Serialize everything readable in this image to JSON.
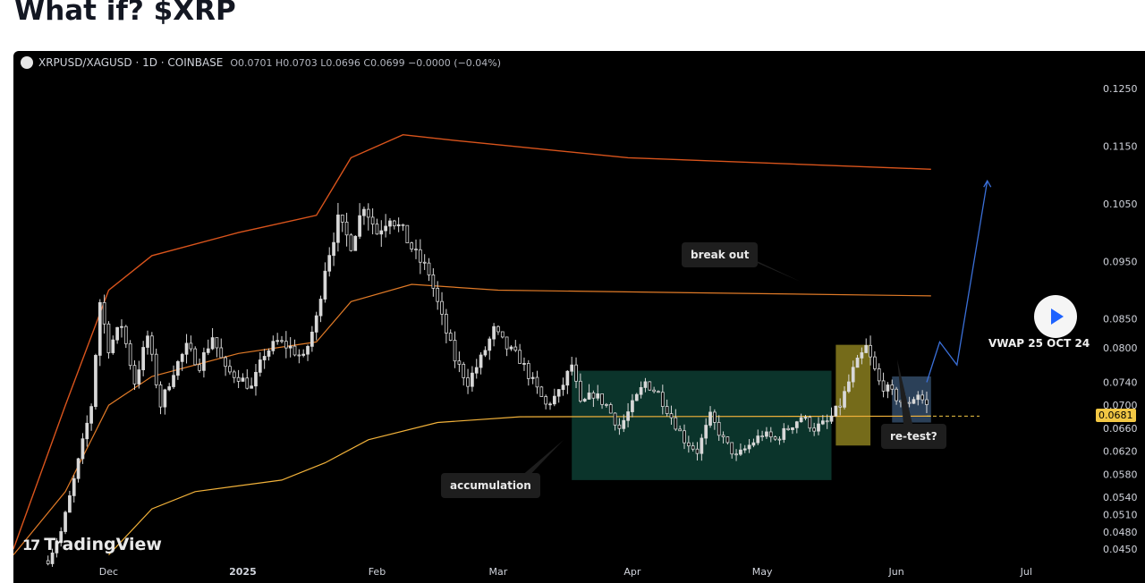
{
  "page": {
    "title": "What if? $XRP"
  },
  "header": {
    "symbol": "XRPUSD/XAGUSD · 1D · COINBASE",
    "ohlc": "O0.0701 H0.0703 L0.0696 C0.0699 −0.0000 (−0.04%)"
  },
  "annotations": {
    "breakout": "break out",
    "accumulation": "accumulation",
    "retest": "re-test?",
    "vwap": "VWAP 25 OCT 24",
    "last_price": "0.0681"
  },
  "logo": {
    "text": "TradingView",
    "icon": "tradingview-logo-icon"
  },
  "colors": {
    "background": "#000000",
    "candle": "#d8d8d8",
    "band_upper": "#d9541c",
    "band_mid": "#e07a27",
    "band_lower": "#f2b23a",
    "vwap": "#9b8a2f",
    "accumulation_box": "#0d3d33",
    "breakout_box": "#8a7e1e",
    "retest_box": "#36506e",
    "projection": "#3a6fd8",
    "badge": "#f2c744"
  },
  "chart_data": {
    "type": "candlestick",
    "symbol": "XRPUSD/XAGUSD",
    "interval": "1D",
    "exchange": "COINBASE",
    "y_ticks": [
      "0.1250",
      "0.1150",
      "0.1050",
      "0.0950",
      "0.0850",
      "0.0800",
      "0.0740",
      "0.0700",
      "0.0660",
      "0.0620",
      "0.0580",
      "0.0540",
      "0.0510",
      "0.0480",
      "0.0450"
    ],
    "x_ticks": [
      "Dec",
      "2025",
      "Feb",
      "Mar",
      "Apr",
      "May",
      "Jun",
      "Jul"
    ],
    "ylim": [
      0.043,
      0.13
    ],
    "x_range_days": [
      -22,
      226
    ],
    "vwap_value": 0.0681,
    "last_close": 0.0699,
    "price_path": [
      [
        -14,
        0.043
      ],
      [
        -11,
        0.048
      ],
      [
        -8,
        0.057
      ],
      [
        -4,
        0.07
      ],
      [
        -2,
        0.088
      ],
      [
        0,
        0.08
      ],
      [
        3,
        0.084
      ],
      [
        6,
        0.074
      ],
      [
        9,
        0.082
      ],
      [
        12,
        0.07
      ],
      [
        15,
        0.076
      ],
      [
        18,
        0.08
      ],
      [
        21,
        0.077
      ],
      [
        24,
        0.082
      ],
      [
        27,
        0.076
      ],
      [
        30,
        0.075
      ],
      [
        33,
        0.073
      ],
      [
        36,
        0.079
      ],
      [
        39,
        0.081
      ],
      [
        42,
        0.08
      ],
      [
        45,
        0.078
      ],
      [
        48,
        0.085
      ],
      [
        50,
        0.094
      ],
      [
        53,
        0.102
      ],
      [
        56,
        0.098
      ],
      [
        59,
        0.105
      ],
      [
        62,
        0.1
      ],
      [
        65,
        0.103
      ],
      [
        68,
        0.1
      ],
      [
        71,
        0.096
      ],
      [
        74,
        0.093
      ],
      [
        77,
        0.085
      ],
      [
        80,
        0.078
      ],
      [
        83,
        0.074
      ],
      [
        86,
        0.078
      ],
      [
        89,
        0.083
      ],
      [
        92,
        0.08
      ],
      [
        95,
        0.078
      ],
      [
        98,
        0.074
      ],
      [
        101,
        0.07
      ],
      [
        104,
        0.072
      ],
      [
        107,
        0.077
      ],
      [
        109,
        0.07
      ],
      [
        112,
        0.072
      ],
      [
        115,
        0.07
      ],
      [
        118,
        0.066
      ],
      [
        121,
        0.07
      ],
      [
        124,
        0.074
      ],
      [
        127,
        0.072
      ],
      [
        130,
        0.068
      ],
      [
        133,
        0.064
      ],
      [
        136,
        0.062
      ],
      [
        139,
        0.068
      ],
      [
        142,
        0.064
      ],
      [
        145,
        0.061
      ],
      [
        148,
        0.063
      ],
      [
        151,
        0.065
      ],
      [
        154,
        0.064
      ],
      [
        157,
        0.066
      ],
      [
        160,
        0.068
      ],
      [
        163,
        0.066
      ],
      [
        166,
        0.067
      ],
      [
        169,
        0.07
      ],
      [
        172,
        0.076
      ],
      [
        175,
        0.08
      ],
      [
        178,
        0.074
      ],
      [
        181,
        0.072
      ],
      [
        184,
        0.07
      ],
      [
        187,
        0.072
      ],
      [
        189,
        0.0699
      ]
    ],
    "bands": {
      "upper": [
        [
          -22,
          0.045
        ],
        [
          -10,
          0.07
        ],
        [
          0,
          0.09
        ],
        [
          10,
          0.096
        ],
        [
          30,
          0.1
        ],
        [
          48,
          0.103
        ],
        [
          56,
          0.113
        ],
        [
          68,
          0.117
        ],
        [
          80,
          0.116
        ],
        [
          120,
          0.113
        ],
        [
          190,
          0.111
        ]
      ],
      "middle": [
        [
          -22,
          0.044
        ],
        [
          -10,
          0.055
        ],
        [
          0,
          0.07
        ],
        [
          10,
          0.075
        ],
        [
          30,
          0.079
        ],
        [
          48,
          0.081
        ],
        [
          56,
          0.088
        ],
        [
          70,
          0.091
        ],
        [
          90,
          0.09
        ],
        [
          190,
          0.089
        ]
      ],
      "lower": [
        [
          0,
          0.044
        ],
        [
          10,
          0.052
        ],
        [
          20,
          0.055
        ],
        [
          40,
          0.057
        ],
        [
          50,
          0.06
        ],
        [
          60,
          0.064
        ],
        [
          76,
          0.067
        ],
        [
          95,
          0.068
        ],
        [
          190,
          0.0681
        ]
      ]
    },
    "projection": [
      [
        189,
        0.074
      ],
      [
        192,
        0.081
      ],
      [
        196,
        0.077
      ],
      [
        203,
        0.109
      ]
    ],
    "zones": [
      {
        "name": "accumulation",
        "x0": 107,
        "x1": 167,
        "y0": 0.057,
        "y1": 0.076
      },
      {
        "name": "break out",
        "x0": 168,
        "x1": 176,
        "y0": 0.063,
        "y1": 0.0805
      },
      {
        "name": "re-test?",
        "x0": 181,
        "x1": 190,
        "y0": 0.067,
        "y1": 0.075
      }
    ]
  }
}
